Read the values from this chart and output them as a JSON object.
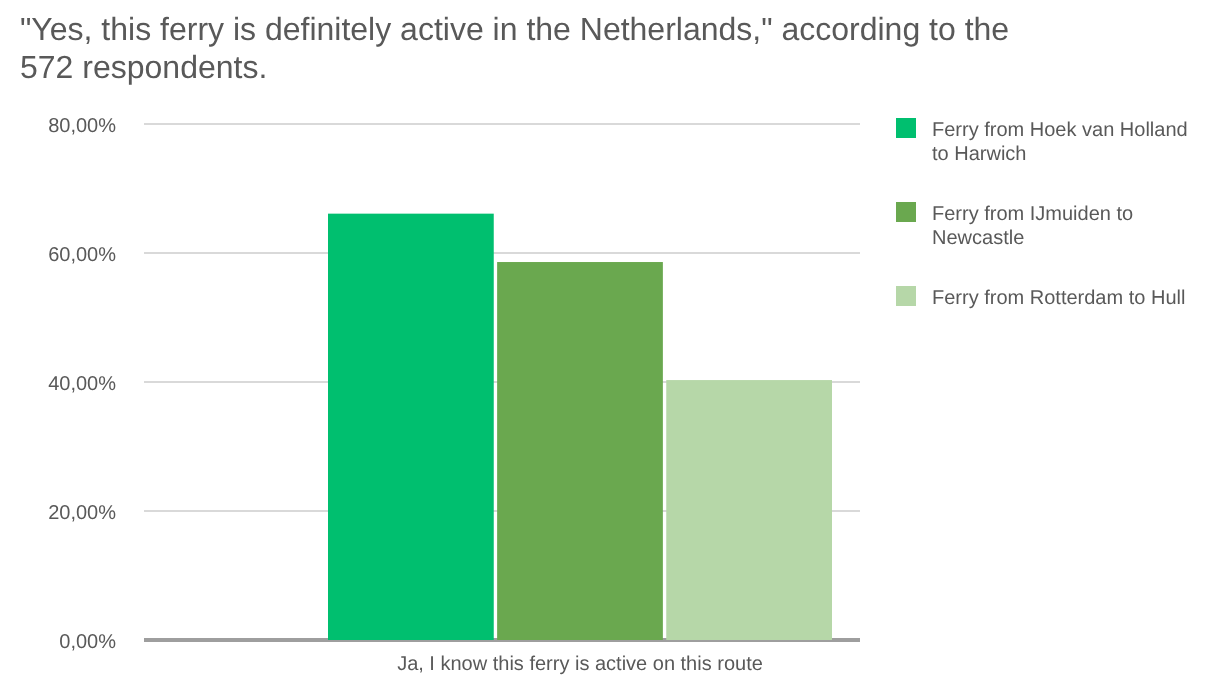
{
  "chart_data": {
    "type": "bar",
    "title": "\"Yes, this ferry is definitely active in the Netherlands,\" according to the 572 respondents.",
    "categories": [
      "Ja, I know this ferry is active on this route"
    ],
    "series": [
      {
        "name": "Ferry from Hoek van Holland to Harwich",
        "color": "#00bf6f",
        "values": [
          66.1
        ]
      },
      {
        "name": "Ferry from IJmuiden to Newcastle",
        "color": "#6aa84f",
        "values": [
          58.6
        ]
      },
      {
        "name": "Ferry from Rotterdam to Hull",
        "color": "#b6d7a8",
        "values": [
          40.3
        ]
      }
    ],
    "ylim": [
      0,
      80
    ],
    "yticks": [
      {
        "value": 0,
        "label": "0,00%"
      },
      {
        "value": 20,
        "label": "20,00%"
      },
      {
        "value": 40,
        "label": "40,00%"
      },
      {
        "value": 60,
        "label": "60,00%"
      },
      {
        "value": 80,
        "label": "80,00%"
      }
    ],
    "grid": "y",
    "legend": "right"
  }
}
